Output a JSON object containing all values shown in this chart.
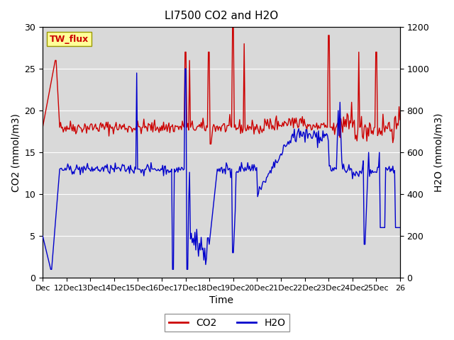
{
  "title": "LI7500 CO2 and H2O",
  "xlabel": "Time",
  "ylabel_left": "CO2 (mmol/m3)",
  "ylabel_right": "H2O (mmol/m3)",
  "annotation": "TW_flux",
  "ylim_left": [
    0,
    30
  ],
  "ylim_right": [
    0,
    1200
  ],
  "yticks_left": [
    0,
    5,
    10,
    15,
    20,
    25,
    30
  ],
  "yticks_right": [
    0,
    200,
    400,
    600,
    800,
    1000,
    1200
  ],
  "xtick_labels": [
    "Dec",
    "12Dec",
    "13Dec",
    "14Dec",
    "15Dec",
    "16Dec",
    "17Dec",
    "18Dec",
    "19Dec",
    "20Dec",
    "21Dec",
    "22Dec",
    "23Dec",
    "24Dec",
    "25Dec",
    "26"
  ],
  "co2_color": "#cc0000",
  "h2o_color": "#0000cc",
  "bg_color": "#d9d9d9",
  "legend_co2": "CO2",
  "legend_h2o": "H2O"
}
